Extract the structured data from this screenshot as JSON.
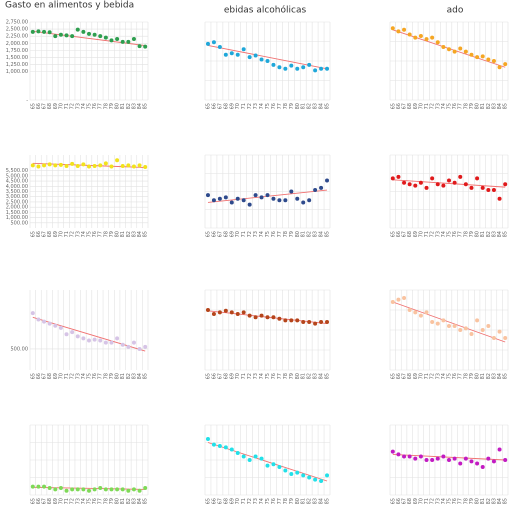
{
  "chart_data": [
    {
      "type": "scatter",
      "title": "Gasto en alimentos y bebida",
      "color": "#2e9e4f",
      "categories": [
        "65",
        "66",
        "67",
        "68",
        "69",
        "70",
        "71",
        "72",
        "73",
        "74",
        "75",
        "76",
        "77",
        "78",
        "79",
        "80",
        "81",
        "82",
        "83",
        "84",
        "85"
      ],
      "values": [
        2400,
        2420,
        2400,
        2390,
        2250,
        2300,
        2280,
        2250,
        2480,
        2400,
        2330,
        2300,
        2250,
        2200,
        2100,
        2150,
        2050,
        2050,
        2150,
        1900,
        1880
      ],
      "trend": [
        2420,
        1920
      ],
      "ylim": [
        0,
        2750
      ],
      "yticks": [
        {
          "value": 2750,
          "label": "2,750.00"
        },
        {
          "value": 2500,
          "label": "2,500.00"
        },
        {
          "value": 2250,
          "label": "2,250.00"
        },
        {
          "value": 2000,
          "label": "2,000.00"
        },
        {
          "value": 1750,
          "label": "1,750.00"
        },
        {
          "value": 1500,
          "label": "1,500.00"
        },
        {
          "value": 1250,
          "label": "1,250.00"
        },
        {
          "value": 1000,
          "label": "1,000.00"
        },
        {
          "value": 0,
          "label": "-"
        }
      ]
    },
    {
      "type": "scatter",
      "title": "ebidas alcohólicas",
      "color": "#1fa7d9",
      "categories": [
        "65",
        "66",
        "67",
        "68",
        "69",
        "70",
        "71",
        "72",
        "73",
        "74",
        "75",
        "76",
        "77",
        "78",
        "79",
        "80",
        "81",
        "82",
        "83",
        "84",
        "85"
      ],
      "values": [
        72,
        74,
        68,
        58,
        60,
        58,
        65,
        55,
        57,
        52,
        50,
        45,
        42,
        40,
        44,
        40,
        42,
        45,
        38,
        40,
        40
      ],
      "trend": [
        70,
        40
      ],
      "ylim": [
        0,
        100
      ]
    },
    {
      "type": "scatter",
      "title": "ado",
      "color": "#f5a623",
      "categories": [
        "65",
        "66",
        "67",
        "68",
        "69",
        "70",
        "71",
        "72",
        "73",
        "74",
        "75",
        "76",
        "77",
        "78",
        "79",
        "80",
        "81",
        "82",
        "83",
        "84",
        "85"
      ],
      "values": [
        92,
        88,
        90,
        84,
        80,
        82,
        78,
        80,
        74,
        68,
        65,
        62,
        66,
        62,
        58,
        55,
        56,
        52,
        50,
        42,
        46
      ],
      "trend": [
        90,
        42
      ],
      "ylim": [
        0,
        100
      ]
    },
    {
      "type": "scatter",
      "color": "#f2e21b",
      "categories": [
        "65",
        "66",
        "67",
        "68",
        "69",
        "70",
        "71",
        "72",
        "73",
        "74",
        "75",
        "76",
        "77",
        "78",
        "79",
        "80",
        "81",
        "82",
        "83",
        "84",
        "85"
      ],
      "values": [
        6000,
        5900,
        6000,
        6100,
        6000,
        6050,
        5950,
        6150,
        5950,
        6100,
        5900,
        5950,
        6000,
        6200,
        5900,
        6500,
        5950,
        6000,
        5900,
        6000,
        5850
      ],
      "trend": [
        6200,
        5800
      ],
      "ylim": [
        0,
        7000
      ],
      "yticks": [
        {
          "value": 5500,
          "label": "5,500.00"
        },
        {
          "value": 5000,
          "label": "5,000.00"
        },
        {
          "value": 4500,
          "label": "4,500.00"
        },
        {
          "value": 4000,
          "label": "4,000.00"
        },
        {
          "value": 3500,
          "label": "3,500.00"
        },
        {
          "value": 3000,
          "label": "3,000.00"
        },
        {
          "value": 2500,
          "label": "2,500.00"
        },
        {
          "value": 2000,
          "label": "2,000.00"
        },
        {
          "value": 1500,
          "label": "1,500.00"
        },
        {
          "value": 1000,
          "label": "1,000.00"
        },
        {
          "value": 500,
          "label": "500.00"
        }
      ]
    },
    {
      "type": "scatter",
      "color": "#2e4a8c",
      "categories": [
        "65",
        "66",
        "67",
        "68",
        "69",
        "70",
        "71",
        "72",
        "73",
        "74",
        "75",
        "76",
        "77",
        "78",
        "79",
        "80",
        "81",
        "82",
        "83",
        "84",
        "85"
      ],
      "values": [
        45,
        38,
        40,
        42,
        35,
        40,
        38,
        32,
        45,
        42,
        45,
        40,
        38,
        38,
        50,
        40,
        35,
        38,
        52,
        55,
        65
      ],
      "trend": [
        35,
        52
      ],
      "ylim": [
        0,
        100
      ]
    },
    {
      "type": "scatter",
      "color": "#e0191b",
      "categories": [
        "65",
        "66",
        "67",
        "68",
        "69",
        "70",
        "71",
        "72",
        "73",
        "74",
        "75",
        "76",
        "77",
        "78",
        "79",
        "80",
        "81",
        "82",
        "83",
        "84",
        "85"
      ],
      "values": [
        68,
        70,
        62,
        60,
        58,
        62,
        55,
        68,
        60,
        58,
        65,
        62,
        70,
        60,
        55,
        68,
        55,
        52,
        52,
        40,
        60
      ],
      "trend": [
        66,
        56
      ],
      "ylim": [
        0,
        100
      ]
    },
    {
      "type": "scatter",
      "color": "#d6c4e6",
      "categories": [
        "65",
        "66",
        "67",
        "68",
        "69",
        "70",
        "71",
        "72",
        "73",
        "74",
        "75",
        "76",
        "77",
        "78",
        "79",
        "80",
        "81",
        "82",
        "83",
        "84",
        "85"
      ],
      "values": [
        1350,
        1200,
        1150,
        1100,
        1050,
        1000,
        850,
        900,
        800,
        750,
        700,
        720,
        700,
        650,
        650,
        750,
        600,
        550,
        650,
        500,
        550
      ],
      "trend": [
        1250,
        450
      ],
      "ylim": [
        0,
        1900
      ],
      "yticks": [
        {
          "value": 500,
          "label": "500.00"
        }
      ]
    },
    {
      "type": "scatter",
      "color": "#b5451b",
      "categories": [
        "65",
        "66",
        "67",
        "68",
        "69",
        "70",
        "71",
        "72",
        "73",
        "74",
        "75",
        "76",
        "77",
        "78",
        "79",
        "80",
        "81",
        "82",
        "83",
        "84",
        "85"
      ],
      "values": [
        75,
        70,
        72,
        74,
        72,
        70,
        72,
        68,
        66,
        68,
        66,
        66,
        64,
        62,
        62,
        62,
        60,
        60,
        58,
        60,
        60
      ],
      "trend": [
        74,
        58
      ],
      "ylim": [
        0,
        100
      ]
    },
    {
      "type": "scatter",
      "color": "#f9c3a0",
      "categories": [
        "65",
        "66",
        "67",
        "68",
        "69",
        "70",
        "71",
        "72",
        "73",
        "74",
        "75",
        "76",
        "77",
        "78",
        "79",
        "80",
        "81",
        "82",
        "83",
        "84",
        "85"
      ],
      "values": [
        85,
        88,
        90,
        75,
        72,
        68,
        72,
        60,
        58,
        62,
        55,
        55,
        50,
        52,
        45,
        62,
        50,
        55,
        40,
        48,
        40
      ],
      "trend": [
        85,
        35
      ],
      "ylim": [
        0,
        100
      ]
    },
    {
      "type": "scatter",
      "color": "#7ed957",
      "categories": [
        "65",
        "66",
        "67",
        "68",
        "69",
        "70",
        "71",
        "72",
        "73",
        "74",
        "75",
        "76",
        "77",
        "78",
        "79",
        "80",
        "81",
        "82",
        "83",
        "84",
        "85"
      ],
      "values": [
        12,
        12,
        12,
        10,
        8,
        10,
        6,
        8,
        8,
        8,
        6,
        8,
        10,
        8,
        8,
        8,
        8,
        6,
        8,
        6,
        10
      ],
      "trend": [
        11,
        8
      ],
      "ylim": [
        0,
        100
      ]
    },
    {
      "type": "scatter",
      "color": "#22e0e8",
      "categories": [
        "65",
        "66",
        "67",
        "68",
        "69",
        "70",
        "71",
        "72",
        "73",
        "74",
        "75",
        "76",
        "77",
        "78",
        "79",
        "80",
        "81",
        "82",
        "83",
        "84",
        "85"
      ],
      "values": [
        80,
        72,
        70,
        68,
        65,
        60,
        55,
        50,
        55,
        52,
        42,
        44,
        40,
        35,
        30,
        32,
        28,
        25,
        22,
        20,
        28
      ],
      "trend": [
        75,
        20
      ],
      "ylim": [
        0,
        100
      ]
    },
    {
      "type": "scatter",
      "color": "#c21bc2",
      "categories": [
        "65",
        "66",
        "67",
        "68",
        "69",
        "70",
        "71",
        "72",
        "73",
        "74",
        "75",
        "76",
        "77",
        "78",
        "79",
        "80",
        "81",
        "82",
        "83",
        "84",
        "85"
      ],
      "values": [
        62,
        58,
        55,
        55,
        52,
        55,
        50,
        50,
        52,
        55,
        50,
        52,
        45,
        52,
        48,
        45,
        40,
        52,
        48,
        65,
        50
      ],
      "trend": [
        58,
        50
      ],
      "ylim": [
        0,
        100
      ]
    }
  ]
}
